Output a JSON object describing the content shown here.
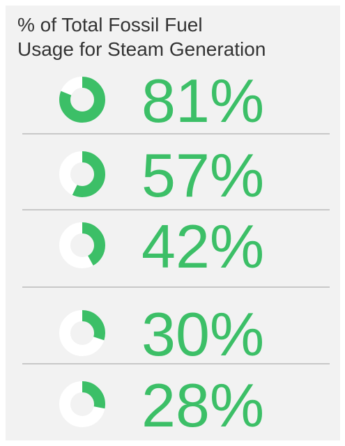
{
  "chart_data": {
    "type": "donut",
    "title": [
      "% of Total Fossil Fuel",
      "Usage for Steam Generation"
    ],
    "values": [
      81,
      57,
      42,
      30,
      28
    ],
    "value_labels": [
      "81%",
      "57%",
      "42%",
      "30%",
      "28%"
    ],
    "color": "#3cbf67",
    "track_color": "#ffffff"
  }
}
